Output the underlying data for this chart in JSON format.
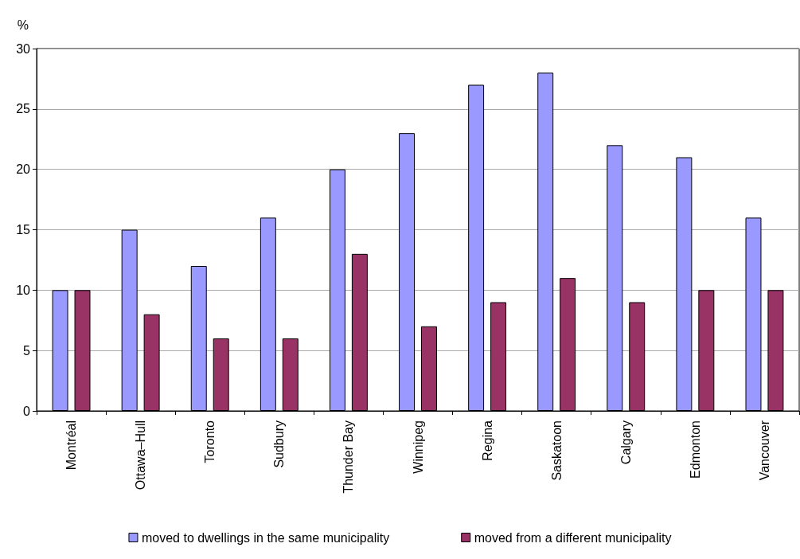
{
  "chart_data": {
    "type": "bar",
    "ylabel": "%",
    "categories": [
      "Montréal",
      "Ottawa–Hull",
      "Toronto",
      "Sudbury",
      "Thunder Bay",
      "Winnipeg",
      "Regina",
      "Saskatoon",
      "Calgary",
      "Edmonton",
      "Vancouver"
    ],
    "series": [
      {
        "name": "moved to dwellings in the same municipality",
        "color": "#9999ff",
        "values": [
          10,
          15,
          12,
          16,
          20,
          23,
          27,
          28,
          22,
          21,
          16
        ]
      },
      {
        "name": "moved from a different municipality",
        "color": "#993366",
        "values": [
          10,
          8,
          6,
          6,
          13,
          7,
          9,
          11,
          9,
          10,
          10
        ]
      }
    ],
    "ylim": [
      0,
      30
    ],
    "yticks": [
      0,
      5,
      10,
      15,
      20,
      25,
      30
    ],
    "grid": "y",
    "legend": "bottom"
  }
}
